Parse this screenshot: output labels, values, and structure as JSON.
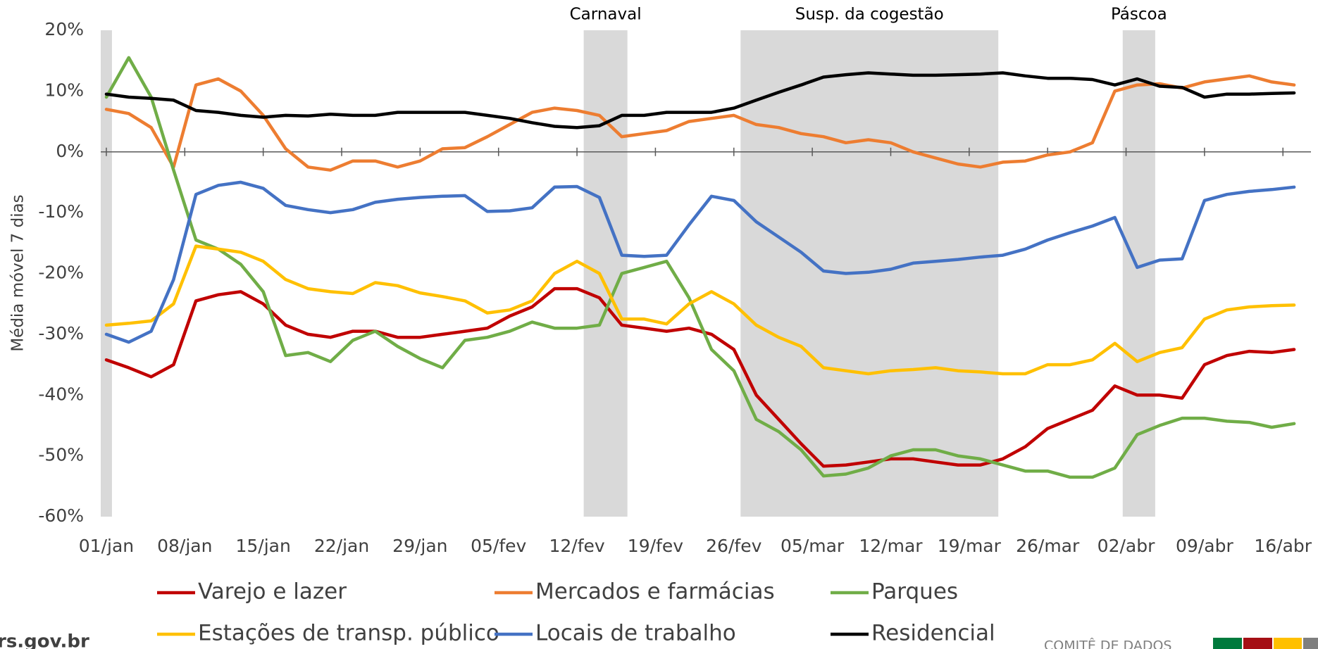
{
  "chart_data": {
    "type": "line",
    "y_label": "Média móvel 7 dias",
    "x": [
      0,
      2,
      4,
      6,
      8,
      10,
      12,
      14,
      16,
      18,
      20,
      22,
      24,
      26,
      28,
      30,
      32,
      34,
      36,
      38,
      40,
      42,
      44,
      46,
      48,
      50,
      52,
      54,
      56,
      58,
      60,
      62,
      64,
      66,
      68,
      70,
      72,
      74,
      76,
      78,
      80,
      82,
      84,
      86,
      88,
      90,
      92,
      94,
      96,
      98,
      100,
      102,
      104,
      106
    ],
    "xlim": [
      -0.5,
      107.5
    ],
    "xticks": [
      {
        "value": 0,
        "label": "01/jan"
      },
      {
        "value": 7,
        "label": "08/jan"
      },
      {
        "value": 14,
        "label": "15/jan"
      },
      {
        "value": 21,
        "label": "22/jan"
      },
      {
        "value": 28,
        "label": "29/jan"
      },
      {
        "value": 35,
        "label": "05/fev"
      },
      {
        "value": 42,
        "label": "12/fev"
      },
      {
        "value": 49,
        "label": "19/fev"
      },
      {
        "value": 56,
        "label": "26/fev"
      },
      {
        "value": 63,
        "label": "05/mar"
      },
      {
        "value": 70,
        "label": "12/mar"
      },
      {
        "value": 77,
        "label": "19/mar"
      },
      {
        "value": 84,
        "label": "26/mar"
      },
      {
        "value": 91,
        "label": "02/abr"
      },
      {
        "value": 98,
        "label": "09/abr"
      },
      {
        "value": 105,
        "label": "16/abr"
      }
    ],
    "ylim": [
      -60,
      20
    ],
    "yticks": [
      {
        "value": 20,
        "label": "20%"
      },
      {
        "value": 10,
        "label": "10%"
      },
      {
        "value": 0,
        "label": "0%"
      },
      {
        "value": -10,
        "label": "-10%"
      },
      {
        "value": -20,
        "label": "-20%"
      },
      {
        "value": -30,
        "label": "-30%"
      },
      {
        "value": -40,
        "label": "-40%"
      },
      {
        "value": -50,
        "label": "-50%"
      },
      {
        "value": -60,
        "label": "-60%"
      }
    ],
    "grid": false,
    "legend": "bottom",
    "band_color": "#d9d9d9",
    "bands": [
      {
        "start": -0.5,
        "end": 0.5
      },
      {
        "label": "Carnaval",
        "start": 42.6,
        "end": 46.5
      },
      {
        "label": "Susp. da cogestão",
        "start": 56.6,
        "end": 79.6
      },
      {
        "label": "Páscoa",
        "start": 90.7,
        "end": 93.6
      }
    ],
    "series": [
      {
        "name": "Varejo e lazer",
        "color": "#c00000",
        "values": [
          -34.2,
          -35.5,
          -37,
          -35,
          -24.5,
          -23.5,
          -23,
          -25,
          -28.5,
          -30,
          -30.5,
          -29.5,
          -29.5,
          -30.5,
          -30.5,
          -30,
          -29.5,
          -29,
          -27,
          -25.5,
          -22.5,
          -22.5,
          -24,
          -28.5,
          -29,
          -29.5,
          -29,
          -30,
          -32.5,
          -40,
          -44,
          -48,
          -51.7,
          -51.5,
          -51,
          -50.5,
          -50.5,
          -51,
          -51.5,
          -51.5,
          -50.5,
          -48.5,
          -45.5,
          -44,
          -42.5,
          -38.5,
          -40,
          -40,
          -40.5,
          -35,
          -33.5,
          -32.8,
          -33,
          -32.5
        ]
      },
      {
        "name": "Mercados e farmácias",
        "color": "#ed7d31",
        "values": [
          7,
          6.3,
          4,
          -2.5,
          11,
          12,
          10,
          6,
          0.5,
          -2.5,
          -3,
          -1.5,
          -1.5,
          -2.5,
          -1.5,
          0.5,
          0.7,
          2.5,
          4.5,
          6.5,
          7.2,
          6.8,
          6,
          2.5,
          3,
          3.5,
          5,
          5.5,
          6,
          4.5,
          4,
          3,
          2.5,
          1.5,
          2,
          1.5,
          0,
          -1,
          -2,
          -2.5,
          -1.7,
          -1.5,
          -0.5,
          0,
          1.5,
          10,
          11,
          11.2,
          10.5,
          11.5,
          12,
          12.5,
          11.5,
          11
        ]
      },
      {
        "name": "Parques",
        "color": "#70ad47",
        "values": [
          9,
          15.5,
          9,
          -3,
          -14.5,
          -16,
          -18.5,
          -23,
          -33.5,
          -33,
          -34.5,
          -31,
          -29.5,
          -32,
          -34,
          -35.5,
          -31,
          -30.5,
          -29.5,
          -28,
          -29,
          -29,
          -28.5,
          -20,
          -19,
          -18,
          -24,
          -32.5,
          -36,
          -44,
          -46,
          -49,
          -53.3,
          -53,
          -52,
          -50,
          -49,
          -49,
          -50,
          -50.5,
          -51.5,
          -52.5,
          -52.5,
          -53.5,
          -53.5,
          -52,
          -46.5,
          -45,
          -43.8,
          -43.8,
          -44.3,
          -44.5,
          -45.3,
          -44.7
        ]
      },
      {
        "name": "Estações de transp. público",
        "color": "#ffc000",
        "values": [
          -28.5,
          -28.2,
          -27.8,
          -25,
          -15.5,
          -16,
          -16.5,
          -18,
          -21,
          -22.5,
          -23,
          -23.3,
          -21.5,
          -22,
          -23.2,
          -23.8,
          -24.5,
          -26.5,
          -26,
          -24.5,
          -20,
          -18,
          -20,
          -27.5,
          -27.5,
          -28.3,
          -25,
          -23,
          -25,
          -28.5,
          -30.5,
          -32,
          -35.5,
          -36,
          -36.5,
          -36,
          -35.8,
          -35.5,
          -36,
          -36.2,
          -36.5,
          -36.5,
          -35,
          -35,
          -34.2,
          -31.5,
          -34.5,
          -33,
          -32.2,
          -27.5,
          -26,
          -25.5,
          -25.3,
          -25.2
        ]
      },
      {
        "name": "Locais de trabalho",
        "color": "#4472c4",
        "values": [
          -30,
          -31.3,
          -29.5,
          -21,
          -7,
          -5.5,
          -5,
          -6,
          -8.8,
          -9.5,
          -10,
          -9.5,
          -8.3,
          -7.8,
          -7.5,
          -7.3,
          -7.2,
          -9.8,
          -9.7,
          -9.2,
          -5.8,
          -5.7,
          -7.5,
          -17,
          -17.2,
          -17,
          -12,
          -7.3,
          -8,
          -11.5,
          -14,
          -16.5,
          -19.6,
          -20,
          -19.8,
          -19.3,
          -18.3,
          -18,
          -17.7,
          -17.3,
          -17,
          -16,
          -14.5,
          -13.3,
          -12.2,
          -10.8,
          -19,
          -17.8,
          -17.6,
          -8,
          -7,
          -6.5,
          -6.2,
          -5.8
        ]
      },
      {
        "name": "Residencial",
        "color": "#000000",
        "values": [
          9.5,
          9,
          8.8,
          8.5,
          6.8,
          6.5,
          6,
          5.7,
          6,
          5.9,
          6.2,
          6,
          6,
          6.5,
          6.5,
          6.5,
          6.5,
          6,
          5.5,
          4.8,
          4.2,
          4,
          4.3,
          6,
          6,
          6.5,
          6.5,
          6.5,
          7.2,
          8.5,
          9.8,
          11,
          12.3,
          12.7,
          13,
          12.8,
          12.6,
          12.6,
          12.7,
          12.8,
          13,
          12.5,
          12.1,
          12.1,
          11.9,
          11,
          12,
          10.8,
          10.6,
          9,
          9.5,
          9.5,
          9.6,
          9.7
        ]
      }
    ]
  },
  "footer": {
    "site": "rs.gov.br",
    "org": "COMITÊ DE DADOS"
  }
}
